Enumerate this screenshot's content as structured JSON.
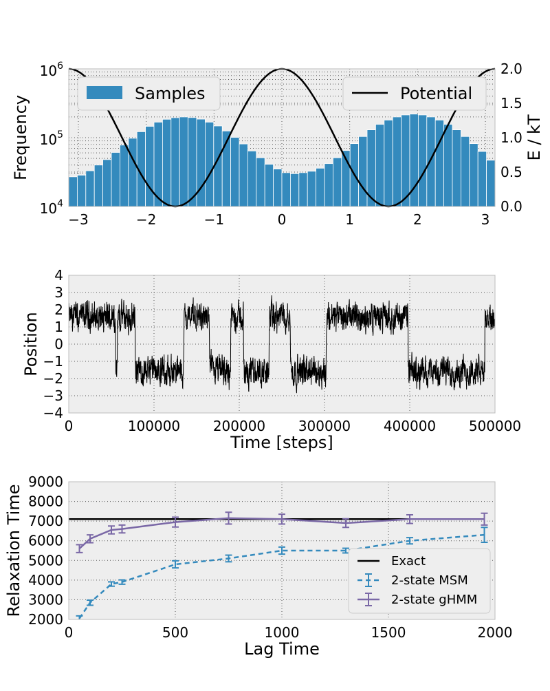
{
  "colors": {
    "panel_bg": "#eeeeee",
    "grid": "#555555",
    "hist_bar": "#348abd",
    "potential": "#000000",
    "trace": "#000000",
    "msm": "#348abd",
    "ghmm": "#7a68a6",
    "exact": "#000000"
  },
  "chart_data": [
    {
      "type": "bar",
      "xlabel": "",
      "ylabel": "Frequency",
      "y2label": "E / kT",
      "xlim": [
        -3.1416,
        3.1416
      ],
      "ylim": [
        10000,
        1000000
      ],
      "yscale": "log",
      "y2lim": [
        0,
        2.0
      ],
      "grid": true,
      "xticks": [
        "−3",
        "−2",
        "−1",
        "0",
        "1",
        "2",
        "3"
      ],
      "xtick_values": [
        -3,
        -2,
        -1,
        0,
        1,
        2,
        3
      ],
      "yticks": [
        {
          "base": "10",
          "exp": "4",
          "value": 10000
        },
        {
          "base": "10",
          "exp": "5",
          "value": 100000
        },
        {
          "base": "10",
          "exp": "6",
          "value": 1000000
        }
      ],
      "y2ticks": [
        "0.0",
        "0.5",
        "1.0",
        "1.5",
        "2.0"
      ],
      "y2tick_values": [
        0,
        0.5,
        1.0,
        1.5,
        2.0
      ],
      "legend": {
        "samples": "Samples",
        "potential": "Potential",
        "samples_position": "top-left",
        "potential_position": "top-right"
      },
      "bins": 50,
      "values": [
        27000,
        28500,
        33000,
        40000,
        48000,
        61000,
        78000,
        98000,
        122000,
        146000,
        168000,
        185000,
        195000,
        200000,
        196000,
        186000,
        168000,
        148000,
        125000,
        101000,
        81000,
        64000,
        51000,
        41000,
        35000,
        31000,
        30000,
        31000,
        32500,
        36000,
        42000,
        51000,
        65000,
        82000,
        104000,
        130000,
        156000,
        180000,
        200000,
        214000,
        220000,
        214000,
        200000,
        180000,
        156000,
        130000,
        104000,
        82000,
        63000,
        47000
      ],
      "potential_formula": "1 + cos(2x)"
    },
    {
      "type": "line",
      "xlabel": "Time [steps]",
      "ylabel": "Position",
      "xlim": [
        0,
        500000
      ],
      "ylim": [
        -4,
        4
      ],
      "grid": true,
      "xticks": [
        "0",
        "100000",
        "200000",
        "300000",
        "400000",
        "500000"
      ],
      "xtick_values": [
        0,
        100000,
        200000,
        300000,
        400000,
        500000
      ],
      "yticks": [
        "−4",
        "−3",
        "−2",
        "−1",
        "0",
        "1",
        "2",
        "3",
        "4"
      ],
      "ytick_values": [
        -4,
        -3,
        -2,
        -1,
        0,
        1,
        2,
        3,
        4
      ],
      "state_segments": [
        [
          0,
          1
        ],
        [
          12000,
          1
        ],
        [
          28000,
          1
        ],
        [
          30000,
          1
        ],
        [
          55000,
          -1
        ],
        [
          57000,
          1
        ],
        [
          75000,
          1
        ],
        [
          78000,
          -1
        ],
        [
          88000,
          -1
        ],
        [
          90000,
          -1
        ],
        [
          120000,
          -1
        ],
        [
          135000,
          1
        ],
        [
          155000,
          1
        ],
        [
          165000,
          -1
        ],
        [
          172000,
          -1
        ],
        [
          190000,
          1
        ],
        [
          205000,
          -1
        ],
        [
          220000,
          -1
        ],
        [
          235000,
          1
        ],
        [
          248000,
          1
        ],
        [
          260000,
          -1
        ],
        [
          268000,
          -1
        ],
        [
          272000,
          -1
        ],
        [
          290000,
          -1
        ],
        [
          302000,
          1
        ],
        [
          318000,
          1
        ],
        [
          345000,
          1
        ],
        [
          348000,
          1
        ],
        [
          360000,
          1
        ],
        [
          375000,
          1
        ],
        [
          392000,
          1
        ],
        [
          398000,
          -1
        ],
        [
          418000,
          -1
        ],
        [
          422000,
          -1
        ],
        [
          440000,
          -1
        ],
        [
          448000,
          -1
        ],
        [
          468000,
          -1
        ],
        [
          475000,
          -1
        ],
        [
          488000,
          1
        ],
        [
          500000,
          1
        ]
      ],
      "state_centers": [
        1.6,
        -1.6
      ]
    },
    {
      "type": "line",
      "xlabel": "Lag Time",
      "ylabel": "Relaxation Time",
      "xlim": [
        0,
        2000
      ],
      "ylim": [
        2000,
        9000
      ],
      "grid": true,
      "xticks": [
        "0",
        "500",
        "1000",
        "1500",
        "2000"
      ],
      "xtick_values": [
        0,
        500,
        1000,
        1500,
        2000
      ],
      "yticks": [
        "2000",
        "3000",
        "4000",
        "5000",
        "6000",
        "7000",
        "8000",
        "9000"
      ],
      "ytick_values": [
        2000,
        3000,
        4000,
        5000,
        6000,
        7000,
        8000,
        9000
      ],
      "legend_position": "lower-right",
      "series": [
        {
          "name": "Exact",
          "style": "solid",
          "x": [
            0,
            1950
          ],
          "y": [
            7100,
            7100
          ],
          "err": []
        },
        {
          "name": "2-state MSM",
          "style": "dashed",
          "x": [
            50,
            100,
            200,
            250,
            500,
            750,
            1000,
            1300,
            1600,
            1950
          ],
          "y": [
            2050,
            2850,
            3800,
            3900,
            4800,
            5100,
            5500,
            5500,
            6000,
            6300
          ],
          "err": [
            130,
            130,
            110,
            110,
            180,
            170,
            180,
            120,
            160,
            380
          ]
        },
        {
          "name": "2-state gHMM",
          "style": "solid",
          "x": [
            50,
            100,
            200,
            250,
            500,
            750,
            1000,
            1300,
            1600,
            1950
          ],
          "y": [
            5600,
            6100,
            6550,
            6600,
            6950,
            7150,
            7100,
            6900,
            7100,
            7100
          ],
          "err": [
            200,
            200,
            200,
            200,
            250,
            300,
            250,
            220,
            220,
            300
          ]
        }
      ]
    }
  ]
}
